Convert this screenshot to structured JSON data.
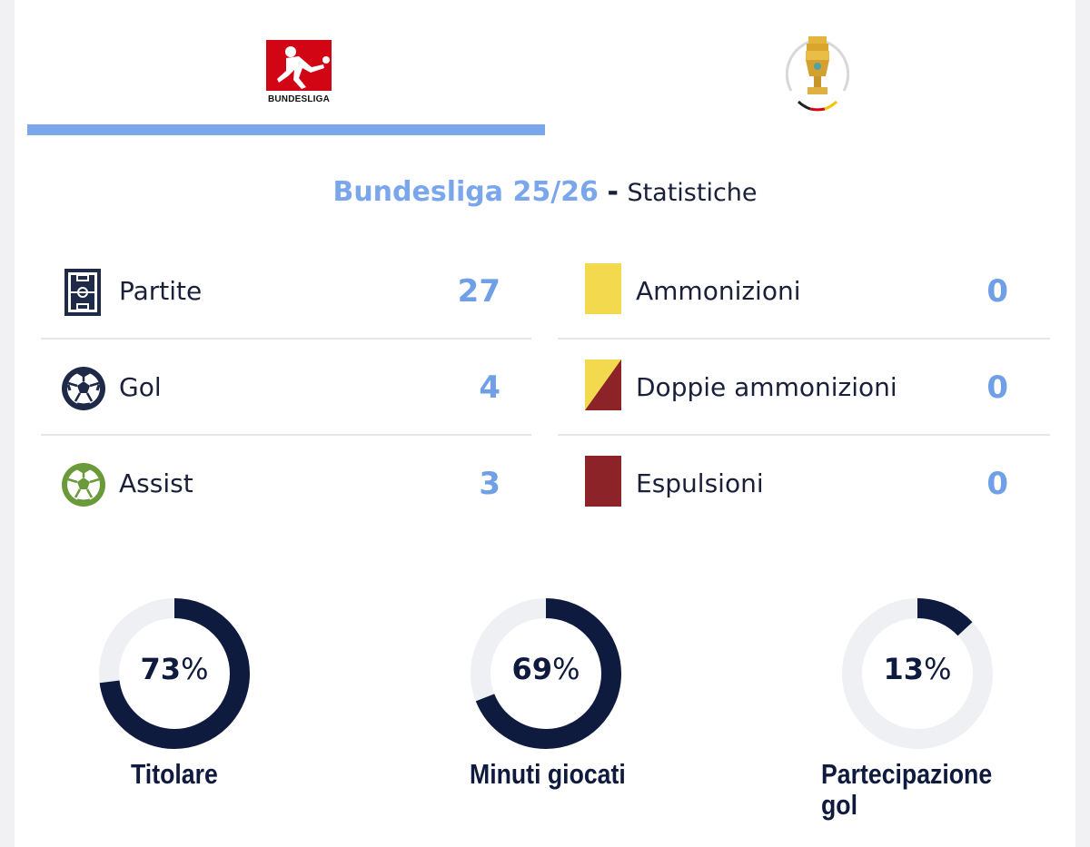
{
  "tabs": [
    {
      "name": "Bundesliga",
      "logo_text": "BUNDESLIGA",
      "active": true
    },
    {
      "name": "DFB-Pokal",
      "active": false
    }
  ],
  "heading": {
    "league": "Bundesliga 25/26",
    "separator": "-",
    "subtitle": "Statistiche"
  },
  "stats_left": [
    {
      "icon": "pitch-icon",
      "label": "Partite",
      "value": "27"
    },
    {
      "icon": "ball-icon",
      "label": "Gol",
      "value": "4"
    },
    {
      "icon": "assist-ball-icon",
      "label": "Assist",
      "value": "3"
    }
  ],
  "stats_right": [
    {
      "icon": "yellow-card-icon",
      "label": "Ammonizioni",
      "value": "0"
    },
    {
      "icon": "second-yellow-card-icon",
      "label": "Doppie ammonizioni",
      "value": "0"
    },
    {
      "icon": "red-card-icon",
      "label": "Espulsioni",
      "value": "0"
    }
  ],
  "donuts": [
    {
      "value": "73",
      "unit": "%",
      "percent": 73,
      "label_lines": [
        "Titolare"
      ]
    },
    {
      "value": "69",
      "unit": "%",
      "percent": 69,
      "label_lines": [
        "Minuti giocati"
      ]
    },
    {
      "value": "13",
      "unit": "%",
      "percent": 13,
      "label_lines": [
        "Partecipazione",
        "gol"
      ]
    }
  ],
  "colors": {
    "accent": "#7aa7ec",
    "value": "#6f9fe6",
    "dark": "#0f1a3f",
    "track": "#eef0f3",
    "yellow_card": "#f2d94e",
    "red_card": "#8b2328",
    "bundesliga_red": "#d20515",
    "assist_green": "#6a9a3a"
  }
}
